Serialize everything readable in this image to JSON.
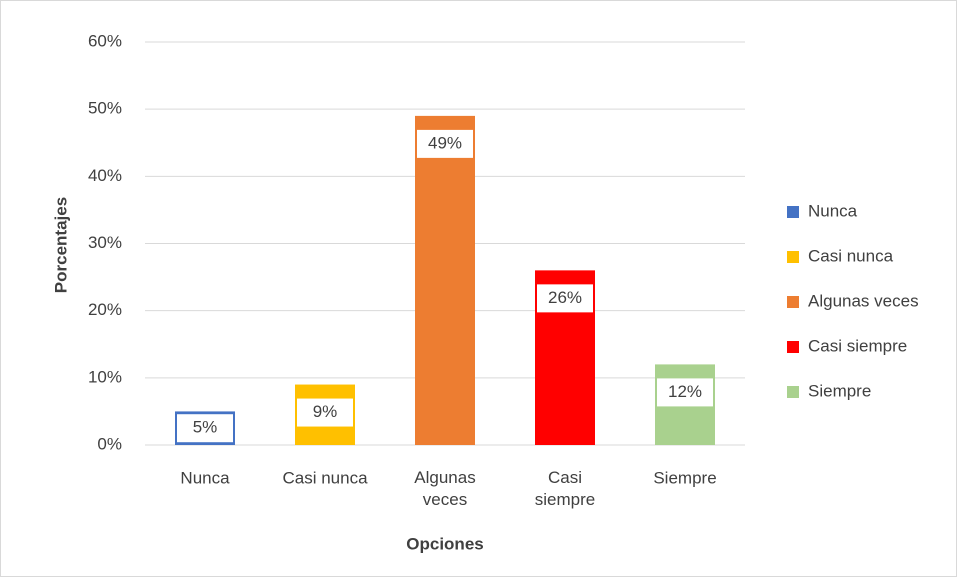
{
  "chart_data": {
    "type": "bar",
    "x_label": "Opciones",
    "y_label": "Porcentajes",
    "categories": [
      "Nunca",
      "Casi nunca",
      "Algunas veces",
      "Casi siempre",
      "Siempre"
    ],
    "values": [
      5,
      9,
      49,
      26,
      12
    ],
    "value_labels": [
      "5%",
      "9%",
      "49%",
      "26%",
      "12%"
    ],
    "colors": [
      "#4472c4",
      "#ffc000",
      "#ed7d31",
      "#ff0000",
      "#a9d18e"
    ],
    "ylim": [
      0,
      60
    ],
    "yticks": [
      {
        "value": 0,
        "label": "0%"
      },
      {
        "value": 10,
        "label": "10%"
      },
      {
        "value": 20,
        "label": "20%"
      },
      {
        "value": 30,
        "label": "30%"
      },
      {
        "value": 40,
        "label": "40%"
      },
      {
        "value": 50,
        "label": "50%"
      },
      {
        "value": 60,
        "label": "60%"
      }
    ],
    "grid": true,
    "legend": "right"
  }
}
